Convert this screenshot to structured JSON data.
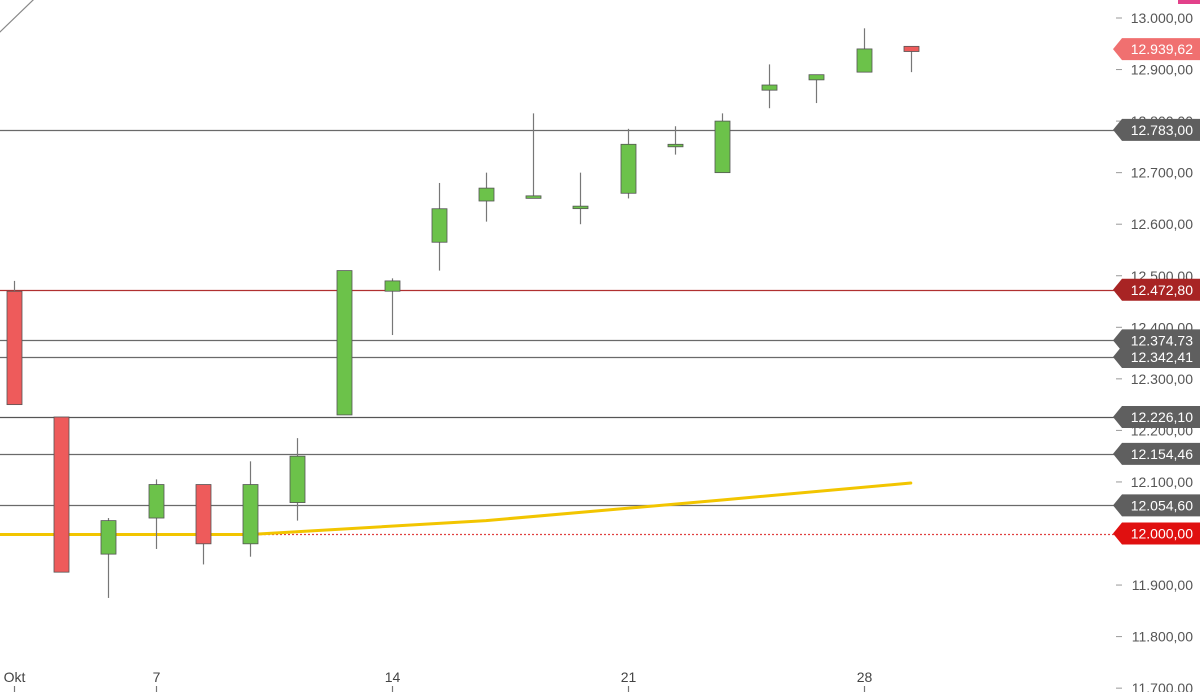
{
  "chart_data": {
    "type": "candlestick",
    "y_axis": {
      "position": "right",
      "range": [
        11700,
        13000
      ],
      "ticks": [
        13000,
        12900,
        12800,
        12700,
        12600,
        12500,
        12400,
        12300,
        12200,
        12100,
        11900,
        11800,
        11700
      ],
      "tick_labels": [
        "13.000,00",
        "12.900,00",
        "12.800,00",
        "12.700,00",
        "12.600,00",
        "12.500,00",
        "12.400,00",
        "12.300,00",
        "12.200,00",
        "12.100,00",
        "11.900,00",
        "11.800,00",
        "11.700,00"
      ]
    },
    "x_axis": {
      "labels": [
        {
          "bar": 0,
          "text": "Okt"
        },
        {
          "bar": 3,
          "text": "7"
        },
        {
          "bar": 8,
          "text": "14"
        },
        {
          "bar": 13,
          "text": "21"
        },
        {
          "bar": 18,
          "text": "28"
        }
      ]
    },
    "candles": [
      {
        "open": 12470,
        "high": 12490,
        "low": 12250,
        "close": 12250
      },
      {
        "open": 12226,
        "high": 12226,
        "low": 11925,
        "close": 11925
      },
      {
        "open": 11960,
        "high": 12030,
        "low": 11875,
        "close": 12025
      },
      {
        "open": 12030,
        "high": 12105,
        "low": 11970,
        "close": 12095
      },
      {
        "open": 12095,
        "high": 12095,
        "low": 11940,
        "close": 11980
      },
      {
        "open": 11980,
        "high": 12140,
        "low": 11955,
        "close": 12095
      },
      {
        "open": 12060,
        "high": 12185,
        "low": 12025,
        "close": 12150
      },
      {
        "open": 12230,
        "high": 12510,
        "low": 12230,
        "close": 12510
      },
      {
        "open": 12470,
        "high": 12495,
        "low": 12385,
        "close": 12490
      },
      {
        "open": 12565,
        "high": 12680,
        "low": 12510,
        "close": 12630
      },
      {
        "open": 12645,
        "high": 12700,
        "low": 12605,
        "close": 12670
      },
      {
        "open": 12655,
        "high": 12815,
        "low": 12655,
        "close": 12655
      },
      {
        "open": 12635,
        "high": 12700,
        "low": 12600,
        "close": 12635
      },
      {
        "open": 12660,
        "high": 12785,
        "low": 12650,
        "close": 12755
      },
      {
        "open": 12755,
        "high": 12790,
        "low": 12735,
        "close": 12755
      },
      {
        "open": 12700,
        "high": 12815,
        "low": 12700,
        "close": 12800
      },
      {
        "open": 12860,
        "high": 12910,
        "low": 12825,
        "close": 12870
      },
      {
        "open": 12880,
        "high": 12890,
        "low": 12835,
        "close": 12890
      },
      {
        "open": 12895,
        "high": 12980,
        "low": 12895,
        "close": 12940
      },
      {
        "open": 12945,
        "high": 12945,
        "low": 12895,
        "close": 12935
      }
    ],
    "horizontal_lines": [
      {
        "value": 12783.0,
        "label": "12.783,00",
        "style": "solid",
        "color": "#6a6a6a",
        "tag_color": "#5f5f5f"
      },
      {
        "value": 12472.8,
        "label": "12.472,80",
        "style": "solid",
        "color": "#b03030",
        "tag_color": "#a82424"
      },
      {
        "value": 12374.73,
        "label": "12.374,73",
        "style": "solid",
        "color": "#6a6a6a",
        "tag_color": "#5f5f5f"
      },
      {
        "value": 12342.41,
        "label": "12.342,41",
        "style": "solid",
        "color": "#6a6a6a",
        "tag_color": "#5f5f5f"
      },
      {
        "value": 12226.1,
        "label": "12.226,10",
        "style": "solid",
        "color": "#555555",
        "tag_color": "#5f5f5f"
      },
      {
        "value": 12154.46,
        "label": "12.154,46",
        "style": "solid",
        "color": "#6a6a6a",
        "tag_color": "#5f5f5f"
      },
      {
        "value": 12054.6,
        "label": "12.054,60",
        "style": "solid",
        "color": "#6a6a6a",
        "tag_color": "#5f5f5f"
      },
      {
        "value": 12000.0,
        "label": "12.000,00",
        "style": "dotted",
        "color": "#e04040",
        "tag_color": "#e01010"
      }
    ],
    "last_price": {
      "value": 12939.62,
      "label": "12.939,62",
      "tag_color": "#f07070"
    },
    "moving_average": {
      "color": "#f2c500",
      "points": [
        {
          "bar": -0.5,
          "value": 11998
        },
        {
          "bar": 5,
          "value": 11998
        },
        {
          "bar": 10,
          "value": 12025
        },
        {
          "bar": 15,
          "value": 12065
        },
        {
          "bar": 19,
          "value": 12098
        }
      ]
    },
    "trendline": {
      "color": "#888888",
      "from": {
        "bar": -0.5,
        "value": 12955
      },
      "to": {
        "bar": 2.5,
        "value": 13220
      }
    },
    "colors": {
      "up": "#6cc24a",
      "down": "#ee5b5b",
      "wick": "#777777",
      "axis_text": "#555555"
    }
  }
}
